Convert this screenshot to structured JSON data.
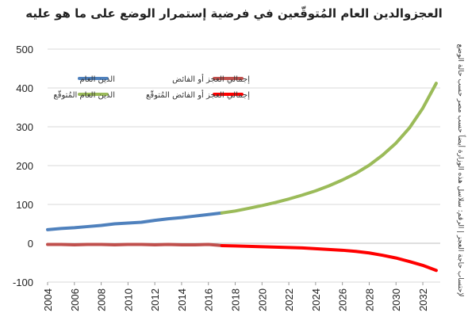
{
  "chart_data": {
    "type": "line",
    "title": "العجزوالدين العام المُتوقّعين في فرضية إستمرار الوضع على ما هو عليه",
    "source_note": "لإحتساب حاجة العجز | الرقم: سلاسل هذه الوزارة أيضاً حسب مصر حسب حالة الوضع",
    "xlabel": "",
    "ylabel": "",
    "xlim": [
      2004,
      2033
    ],
    "ylim": [
      -100,
      500
    ],
    "x_ticks": [
      "2004",
      "2006",
      "2008",
      "2010",
      "2012",
      "2014",
      "2016",
      "2018",
      "2020",
      "2022",
      "2024",
      "2026",
      "2028",
      "2030",
      "2032"
    ],
    "y_ticks": [
      "500",
      "400",
      "300",
      "200",
      "100",
      "0",
      "-100"
    ],
    "legend_position": "top",
    "series": [
      {
        "name": "الدين العام",
        "color": "#4f81bd",
        "x": [
          2004,
          2005,
          2006,
          2007,
          2008,
          2009,
          2010,
          2011,
          2012,
          2013,
          2014,
          2015,
          2016,
          2017
        ],
        "y": [
          35,
          38,
          40,
          43,
          46,
          50,
          52,
          54,
          59,
          63,
          66,
          70,
          74,
          78
        ]
      },
      {
        "name": "الدين العام المُتوقّع",
        "color": "#9bbb59",
        "x": [
          2017,
          2018,
          2019,
          2020,
          2021,
          2022,
          2023,
          2024,
          2025,
          2026,
          2027,
          2028,
          2029,
          2030,
          2031,
          2032,
          2033
        ],
        "y": [
          78,
          83,
          90,
          97,
          105,
          114,
          124,
          135,
          148,
          163,
          180,
          201,
          227,
          258,
          297,
          348,
          412
        ]
      },
      {
        "name": "إجمالي العجز أو الفائض",
        "color": "#c0504d",
        "x": [
          2004,
          2005,
          2006,
          2007,
          2008,
          2009,
          2010,
          2011,
          2012,
          2013,
          2014,
          2015,
          2016,
          2017
        ],
        "y": [
          -3,
          -3,
          -4,
          -3,
          -3,
          -4,
          -3,
          -3,
          -4,
          -3,
          -4,
          -4,
          -3,
          -6
        ]
      },
      {
        "name": "إجمالي العجز أو الفائض المُتوقّع",
        "color": "#ff0000",
        "x": [
          2017,
          2018,
          2019,
          2020,
          2021,
          2022,
          2023,
          2024,
          2025,
          2026,
          2027,
          2028,
          2029,
          2030,
          2031,
          2032,
          2033
        ],
        "y": [
          -6,
          -7,
          -8,
          -9,
          -10,
          -11,
          -12,
          -14,
          -16,
          -18,
          -21,
          -25,
          -31,
          -38,
          -47,
          -57,
          -70
        ]
      }
    ]
  }
}
